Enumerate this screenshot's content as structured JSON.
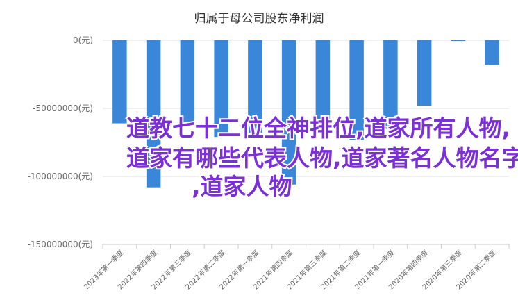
{
  "chart_data": {
    "type": "bar",
    "title": "归属于母公司股东净利润",
    "categories": [
      "2023年第一季度",
      "2022年第四季度",
      "2022年第三季度",
      "2022年第二季度",
      "2022年第一季度",
      "2021年第四季度",
      "2021年第三季度",
      "2021年第二季度",
      "2021年第一季度",
      "2020年第四季度",
      "2020年第三季度",
      "2020年第二季度"
    ],
    "values": [
      -61000000,
      -108000000,
      -62000000,
      -71000000,
      -68000000,
      -106000000,
      -66000000,
      -73000000,
      -65000000,
      -48000000,
      -500000,
      -18000000
    ],
    "yticks": [
      0,
      -50000000,
      -100000000,
      -150000000
    ],
    "ytick_labels": [
      "0(元)",
      "-50000000(元)",
      "-100000000(元)",
      "-150000000(元)"
    ],
    "ylim": [
      -150000000,
      0
    ],
    "grid": true,
    "bar_color": "#3a87d9"
  },
  "overlay": {
    "lines": [
      "道教七十二位全神排位,道家所有人物,",
      "道家有哪些代表人物,道家著名人物名字",
      ",道家人物"
    ],
    "color": "#7b2fd6"
  }
}
